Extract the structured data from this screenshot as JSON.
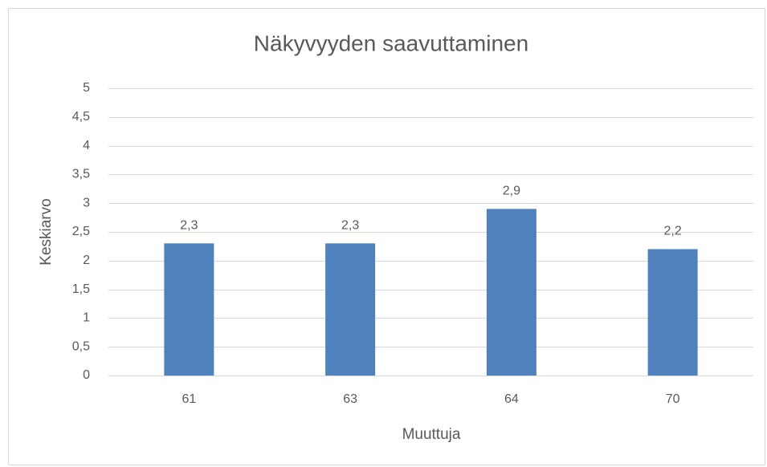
{
  "chart_data": {
    "type": "bar",
    "title": "Näkyvyyden saavuttaminen",
    "x_label": "Muuttuja",
    "y_label": "Keskiarvo",
    "categories": [
      "61",
      "63",
      "64",
      "70"
    ],
    "values": [
      2.3,
      2.3,
      2.9,
      2.2
    ],
    "value_labels": [
      "2,3",
      "2,3",
      "2,9",
      "2,2"
    ],
    "color": "#4f81bd",
    "ylim": [
      0,
      5
    ],
    "yticks": [
      0,
      {
        "value": 0.5,
        "label": "0,5"
      },
      1,
      {
        "value": 1.5,
        "label": "1,5"
      },
      2,
      {
        "value": 2.5,
        "label": "2,5"
      },
      3,
      {
        "value": 3.5,
        "label": "3,5"
      },
      4,
      {
        "value": 4.5,
        "label": "4,5"
      },
      5
    ],
    "grid": true
  }
}
